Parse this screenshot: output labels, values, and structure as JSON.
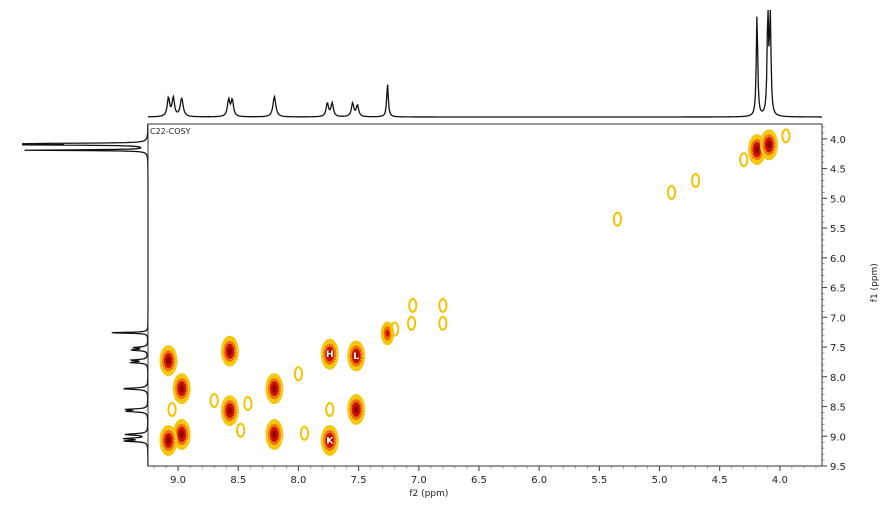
{
  "chart_data": {
    "type": "heatmap",
    "subtype": "2D NMR COSY contour plot",
    "title": "",
    "plot_label": "C22-COSY",
    "xlabel": "f2 (ppm)",
    "ylabel": "f1 (ppm)",
    "x_axis": {
      "reversed": true,
      "range": [
        9.25,
        3.65
      ],
      "ticks": [
        "9.0",
        "8.5",
        "8.0",
        "7.5",
        "7.0",
        "6.5",
        "6.0",
        "5.5",
        "5.0",
        "4.5",
        "4.0"
      ]
    },
    "y_axis": {
      "reversed": false,
      "position": "right",
      "range": [
        3.75,
        9.5
      ],
      "ticks": [
        "4.0",
        "4.5",
        "5.0",
        "5.5",
        "6.0",
        "6.5",
        "7.0",
        "7.5",
        "8.0",
        "8.5",
        "9.0",
        "9.5"
      ]
    },
    "grid": false,
    "colors": {
      "outer": "#f5c400",
      "mid": "#ee6a00",
      "core": "#cc1100",
      "peak": "#8a0000",
      "trace": "#111111"
    },
    "projection_1d": {
      "peaks": [
        {
          "ppm": 9.08,
          "height": 0.18,
          "width": 0.012
        },
        {
          "ppm": 9.04,
          "height": 0.18,
          "width": 0.012
        },
        {
          "ppm": 8.97,
          "height": 0.18,
          "width": 0.014
        },
        {
          "ppm": 8.58,
          "height": 0.16,
          "width": 0.012
        },
        {
          "ppm": 8.55,
          "height": 0.16,
          "width": 0.012
        },
        {
          "ppm": 8.2,
          "height": 0.2,
          "width": 0.014
        },
        {
          "ppm": 7.76,
          "height": 0.13,
          "width": 0.012
        },
        {
          "ppm": 7.72,
          "height": 0.13,
          "width": 0.012
        },
        {
          "ppm": 7.55,
          "height": 0.13,
          "width": 0.012
        },
        {
          "ppm": 7.51,
          "height": 0.11,
          "width": 0.012
        },
        {
          "ppm": 7.26,
          "height": 0.32,
          "width": 0.008
        },
        {
          "ppm": 4.19,
          "height": 1.0,
          "width": 0.007
        },
        {
          "ppm": 4.1,
          "height": 1.0,
          "width": 0.007
        },
        {
          "ppm": 4.08,
          "height": 1.0,
          "width": 0.007
        }
      ]
    },
    "cross_peaks": [
      {
        "x": 9.08,
        "y": 7.73,
        "intensity": 3
      },
      {
        "x": 8.97,
        "y": 8.2,
        "intensity": 3
      },
      {
        "x": 8.57,
        "y": 7.57,
        "intensity": 3
      },
      {
        "x": 8.2,
        "y": 8.2,
        "intensity": 3
      },
      {
        "x": 7.74,
        "y": 7.62,
        "intensity": 3,
        "label": "H"
      },
      {
        "x": 7.52,
        "y": 7.65,
        "intensity": 3,
        "label": "L"
      },
      {
        "x": 8.97,
        "y": 8.97,
        "intensity": 3
      },
      {
        "x": 9.08,
        "y": 9.07,
        "intensity": 3
      },
      {
        "x": 8.57,
        "y": 8.57,
        "intensity": 3
      },
      {
        "x": 8.2,
        "y": 8.97,
        "intensity": 3
      },
      {
        "x": 7.52,
        "y": 8.55,
        "intensity": 3
      },
      {
        "x": 7.74,
        "y": 9.07,
        "intensity": 3,
        "label": "K"
      },
      {
        "x": 7.26,
        "y": 7.27,
        "intensity": 2
      },
      {
        "x": 7.74,
        "y": 8.55,
        "intensity": 1
      },
      {
        "x": 4.19,
        "y": 4.18,
        "intensity": 3
      },
      {
        "x": 4.09,
        "y": 4.1,
        "intensity": 3
      },
      {
        "x": 4.3,
        "y": 4.35,
        "intensity": 1
      },
      {
        "x": 3.95,
        "y": 3.95,
        "intensity": 1
      },
      {
        "x": 5.35,
        "y": 5.35,
        "intensity": 1
      },
      {
        "x": 4.9,
        "y": 4.9,
        "intensity": 1
      },
      {
        "x": 4.7,
        "y": 4.7,
        "intensity": 1
      },
      {
        "x": 7.05,
        "y": 6.8,
        "intensity": 1
      },
      {
        "x": 7.06,
        "y": 7.1,
        "intensity": 1
      },
      {
        "x": 6.8,
        "y": 6.8,
        "intensity": 1
      },
      {
        "x": 6.8,
        "y": 7.1,
        "intensity": 1
      },
      {
        "x": 8.7,
        "y": 8.4,
        "intensity": 1
      },
      {
        "x": 9.05,
        "y": 8.55,
        "intensity": 1
      },
      {
        "x": 8.0,
        "y": 7.95,
        "intensity": 1
      },
      {
        "x": 8.48,
        "y": 8.9,
        "intensity": 1
      },
      {
        "x": 7.95,
        "y": 8.95,
        "intensity": 1
      },
      {
        "x": 8.42,
        "y": 8.45,
        "intensity": 1
      },
      {
        "x": 7.2,
        "y": 7.2,
        "intensity": 1
      }
    ]
  }
}
